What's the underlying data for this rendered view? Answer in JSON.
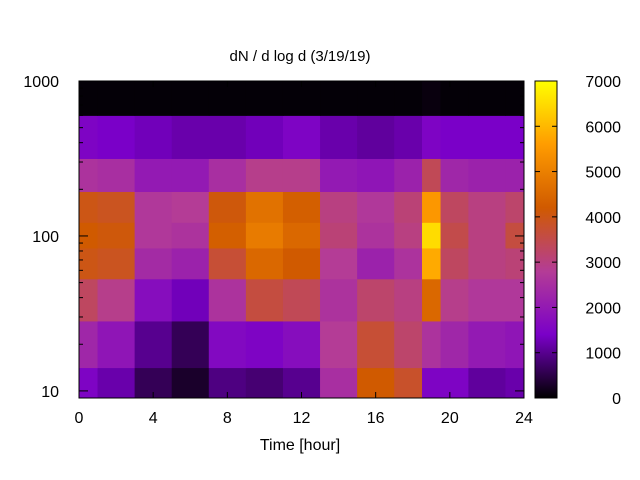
{
  "chart_data": {
    "type": "heatmap",
    "title": "dN / d log d (3/19/19)",
    "xlabel": "Time [hour]",
    "ylabel": "",
    "xlim": [
      0,
      24
    ],
    "ylim": [
      9,
      1000
    ],
    "y_scale": "log",
    "x_ticks": [
      0,
      4,
      8,
      12,
      16,
      20,
      24
    ],
    "x_tick_labels": [
      "0",
      "4",
      "8",
      "12",
      "16",
      "20",
      "24"
    ],
    "y_ticks": [
      10,
      100,
      1000
    ],
    "y_tick_labels": [
      "10",
      "100",
      "1000"
    ],
    "colorbar": {
      "min": 0,
      "max": 7000,
      "ticks": [
        0,
        1000,
        2000,
        3000,
        4000,
        5000,
        6000,
        7000
      ],
      "tick_labels": [
        "0",
        "1000",
        "2000",
        "3000",
        "4000",
        "5000",
        "6000",
        "7000"
      ],
      "colormap": [
        "#000000",
        "#7a00c8",
        "#b43c96",
        "#d05a00",
        "#ff9c00",
        "#ffff00"
      ]
    },
    "x_hours": [
      0,
      2,
      4,
      6,
      8,
      10,
      12,
      14,
      16,
      18,
      19,
      20,
      22,
      24
    ],
    "y_diameters": [
      10,
      20,
      40,
      70,
      100,
      150,
      250,
      400,
      900
    ],
    "values": [
      [
        1500,
        1200,
        600,
        300,
        900,
        800,
        1000,
        2500,
        4200,
        3800,
        1500,
        1500,
        1100,
        1200
      ],
      [
        2300,
        1900,
        1000,
        600,
        1600,
        1500,
        1700,
        2800,
        3700,
        3200,
        2600,
        2300,
        2000,
        1900
      ],
      [
        3300,
        2900,
        1700,
        1300,
        2600,
        3600,
        3400,
        2600,
        3200,
        3000,
        4500,
        2900,
        2700,
        2700
      ],
      [
        4000,
        3900,
        2400,
        2200,
        3700,
        4500,
        4200,
        2800,
        2200,
        2600,
        5800,
        3300,
        3000,
        3100
      ],
      [
        4200,
        4100,
        2700,
        2600,
        4300,
        4900,
        4500,
        3100,
        2600,
        3000,
        6500,
        3500,
        3000,
        3600
      ],
      [
        4000,
        3900,
        2700,
        2800,
        4100,
        4700,
        4300,
        3000,
        2700,
        3100,
        5500,
        3300,
        3000,
        3200
      ],
      [
        2600,
        2500,
        2000,
        2000,
        2500,
        2900,
        2900,
        2000,
        1900,
        2200,
        3400,
        2300,
        2200,
        2200
      ],
      [
        1500,
        1400,
        1300,
        1200,
        1200,
        1300,
        1500,
        1200,
        1100,
        1200,
        1500,
        1400,
        1400,
        1400
      ],
      [
        50,
        50,
        50,
        50,
        50,
        50,
        50,
        50,
        50,
        50,
        100,
        50,
        50,
        50
      ]
    ]
  }
}
